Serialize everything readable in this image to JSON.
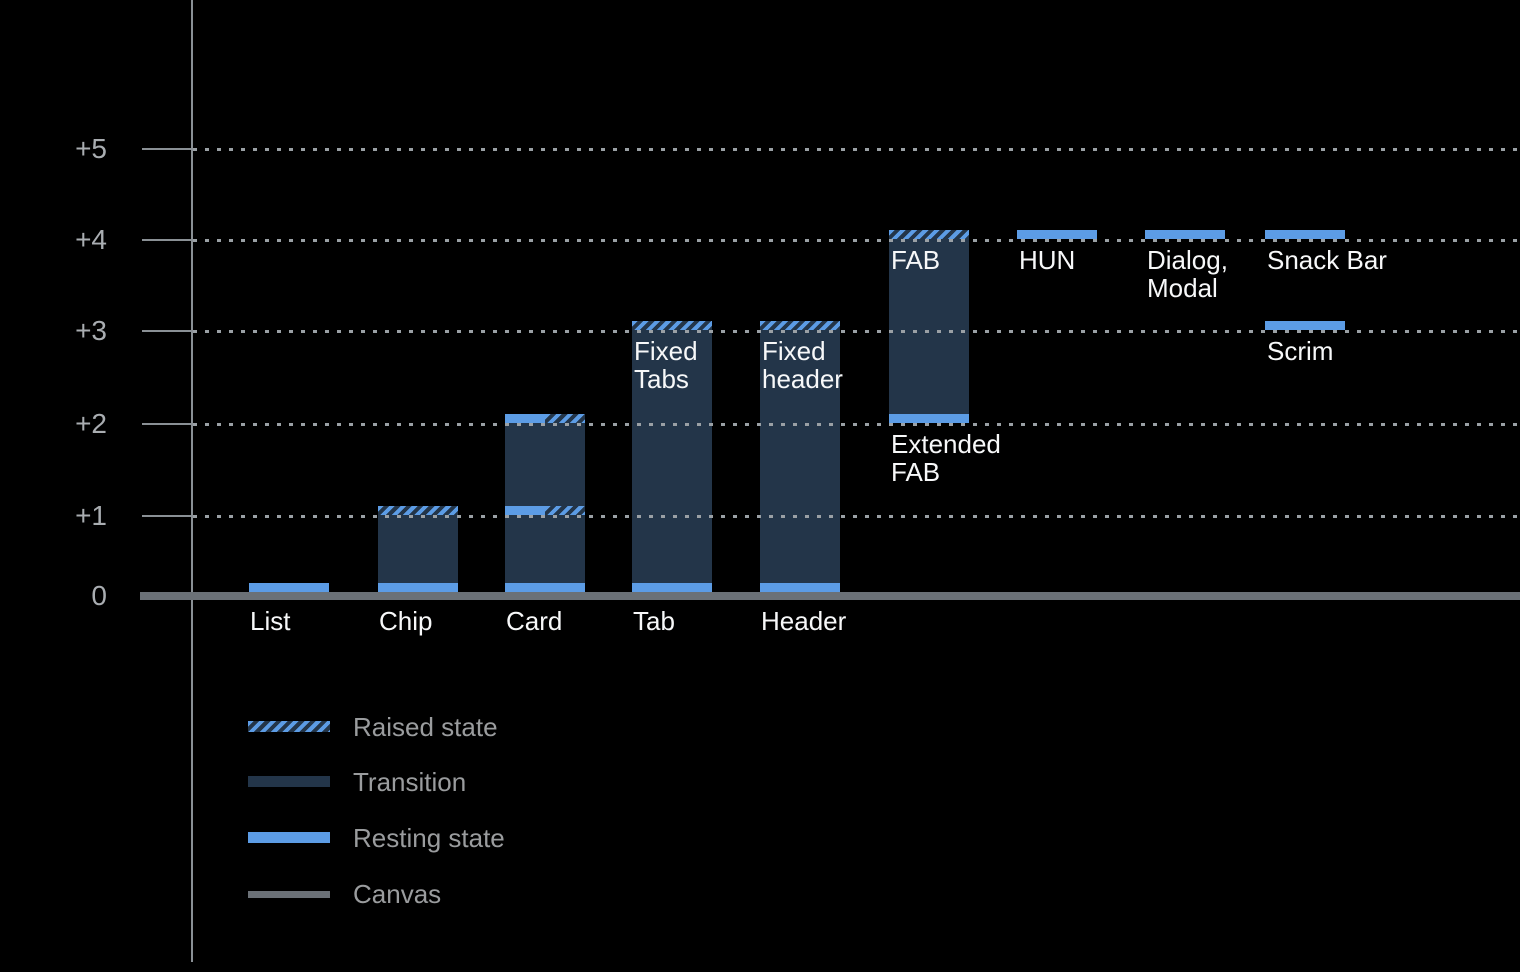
{
  "chart_data": {
    "type": "bar",
    "subject": "elevation levels",
    "y_axis": {
      "tick_labels": [
        "+5",
        "+4",
        "+3",
        "+2",
        "+1",
        "0"
      ],
      "ylim": [
        0,
        5
      ],
      "gridline_levels": [
        5,
        4,
        3,
        2,
        1
      ],
      "grid_style": "dotted"
    },
    "colors": {
      "background": "#000000",
      "resting": "#5C9CE5",
      "transition": "#233549",
      "canvas": "#6B7177",
      "grid": "#9AA0A5",
      "axis": "#8A9095",
      "tick_label": "#A9ADB1",
      "bar_label": "#F7F8F9",
      "legend_label": "#9A9C9E"
    },
    "legend": {
      "position": "bottom-left",
      "items": [
        {
          "label": "Raised state",
          "style": "raised"
        },
        {
          "label": "Transition",
          "style": "transition"
        },
        {
          "label": "Resting state",
          "style": "resting"
        },
        {
          "label": "Canvas",
          "style": "canvas"
        }
      ]
    },
    "bars": [
      {
        "name": "list",
        "axis_label": "List",
        "col": 0,
        "segments": [
          {
            "kind": "resting",
            "level": 0
          }
        ]
      },
      {
        "name": "chip",
        "axis_label": "Chip",
        "col": 1,
        "segments": [
          {
            "kind": "resting",
            "level": 0
          },
          {
            "kind": "transition",
            "from": 0,
            "to": 1
          },
          {
            "kind": "raised",
            "level": 1
          }
        ]
      },
      {
        "name": "card",
        "axis_label": "Card",
        "col": 2,
        "segments": [
          {
            "kind": "resting",
            "level": 0
          },
          {
            "kind": "transition",
            "from": 0,
            "to": 1
          },
          {
            "kind": "split",
            "level": 1
          },
          {
            "kind": "transition",
            "from": 1,
            "to": 2
          },
          {
            "kind": "split",
            "level": 2
          }
        ]
      },
      {
        "name": "tab",
        "axis_label": "Tab",
        "col": 3,
        "segments": [
          {
            "kind": "resting",
            "level": 0
          },
          {
            "kind": "transition",
            "from": 0,
            "to": 3
          },
          {
            "kind": "raised",
            "level": 3
          }
        ],
        "annotations": [
          {
            "lines": [
              "Fixed",
              "Tabs"
            ],
            "anchor_level": 3
          }
        ]
      },
      {
        "name": "header",
        "axis_label": "Header",
        "col": 4,
        "segments": [
          {
            "kind": "resting",
            "level": 0
          },
          {
            "kind": "transition",
            "from": 0,
            "to": 3
          },
          {
            "kind": "raised",
            "level": 3
          }
        ],
        "annotations": [
          {
            "lines": [
              "Fixed",
              "header"
            ],
            "anchor_level": 3
          }
        ]
      },
      {
        "name": "fab",
        "col": 5,
        "segments": [
          {
            "kind": "resting",
            "level": 2
          },
          {
            "kind": "transition",
            "from": 2,
            "to": 4
          },
          {
            "kind": "raised",
            "level": 4
          }
        ],
        "annotations": [
          {
            "lines": [
              "FAB"
            ],
            "anchor_level": 4
          },
          {
            "lines": [
              "Extended",
              "FAB"
            ],
            "anchor_level": 2
          }
        ]
      },
      {
        "name": "hun",
        "col": 6,
        "segments": [
          {
            "kind": "resting",
            "level": 4
          }
        ],
        "annotations": [
          {
            "lines": [
              "HUN"
            ],
            "anchor_level": 4
          }
        ]
      },
      {
        "name": "dialog-modal",
        "col": 7,
        "segments": [
          {
            "kind": "resting",
            "level": 4
          }
        ],
        "annotations": [
          {
            "lines": [
              "Dialog,",
              "Modal"
            ],
            "anchor_level": 4
          }
        ]
      },
      {
        "name": "snack-bar",
        "col": 8,
        "segments": [
          {
            "kind": "resting",
            "level": 4
          }
        ],
        "annotations": [
          {
            "lines": [
              "Snack Bar"
            ],
            "anchor_level": 4
          }
        ]
      },
      {
        "name": "scrim",
        "col": 8,
        "segments": [
          {
            "kind": "resting",
            "level": 3
          }
        ],
        "annotations": [
          {
            "lines": [
              "Scrim"
            ],
            "anchor_level": 3
          }
        ]
      }
    ]
  }
}
